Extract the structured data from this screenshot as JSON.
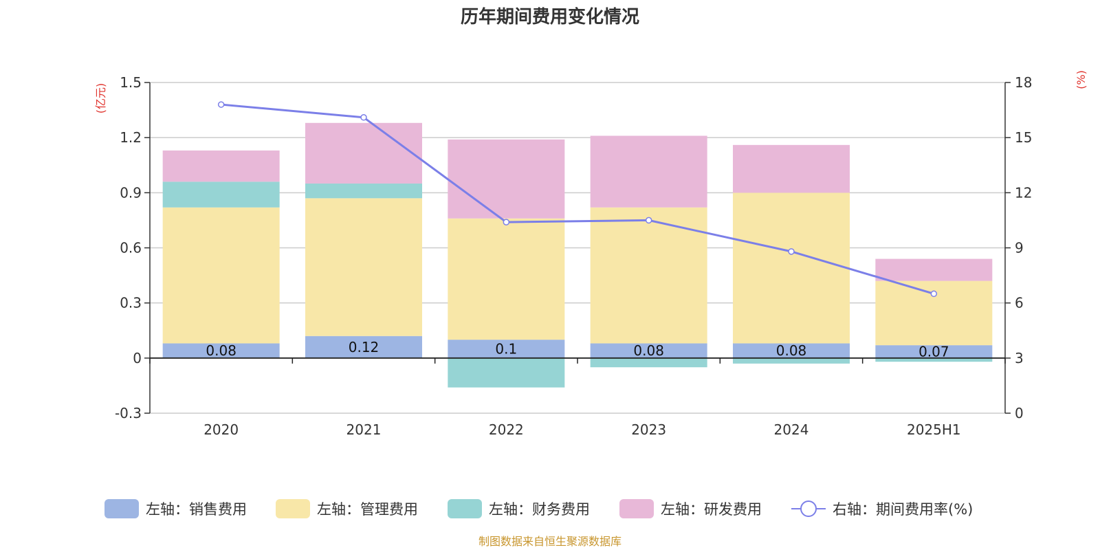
{
  "chart_data": {
    "type": "bar",
    "title": "历年期间费用变化情况",
    "categories": [
      "2020",
      "2021",
      "2022",
      "2023",
      "2024",
      "2025H1"
    ],
    "stacked": true,
    "left_axis": {
      "unit": "(亿元)",
      "ylim": [
        -0.3,
        1.5
      ],
      "ticks": [
        -0.3,
        0,
        0.3,
        0.6,
        0.9,
        1.2,
        1.5
      ],
      "tick_labels": [
        "-0.3",
        "0",
        "0.3",
        "0.6",
        "0.9",
        "1.2",
        "1.5"
      ]
    },
    "right_axis": {
      "unit": "(%)",
      "ylim": [
        0,
        18
      ],
      "ticks": [
        0,
        3,
        6,
        9,
        12,
        15,
        18
      ],
      "tick_labels": [
        "0",
        "3",
        "6",
        "9",
        "12",
        "15",
        "18"
      ]
    },
    "series": [
      {
        "name": "左轴：销售费用",
        "type": "bar",
        "axis": "left",
        "color": "#9db5e3",
        "values": [
          0.08,
          0.12,
          0.1,
          0.08,
          0.08,
          0.07
        ],
        "data_labels": [
          "0.08",
          "0.12",
          "0.1",
          "0.08",
          "0.08",
          "0.07"
        ]
      },
      {
        "name": "左轴：管理费用",
        "type": "bar",
        "axis": "left",
        "color": "#f8e7a8",
        "values": [
          0.74,
          0.75,
          0.66,
          0.74,
          0.82,
          0.35
        ]
      },
      {
        "name": "左轴：财务费用",
        "type": "bar",
        "axis": "left",
        "color": "#96d4d4",
        "values": [
          0.14,
          0.08,
          -0.16,
          -0.05,
          -0.03,
          -0.02
        ]
      },
      {
        "name": "左轴：研发费用",
        "type": "bar",
        "axis": "left",
        "color": "#e8b8d8",
        "values": [
          0.17,
          0.33,
          0.43,
          0.39,
          0.26,
          0.12
        ]
      },
      {
        "name": "右轴：期间费用率(%)",
        "type": "line",
        "axis": "right",
        "color": "#7b7fe8",
        "values": [
          16.8,
          16.1,
          10.4,
          10.5,
          8.8,
          6.5
        ]
      }
    ],
    "grid": true,
    "legend_position": "bottom",
    "source": "制图数据来自恒生聚源数据库"
  }
}
